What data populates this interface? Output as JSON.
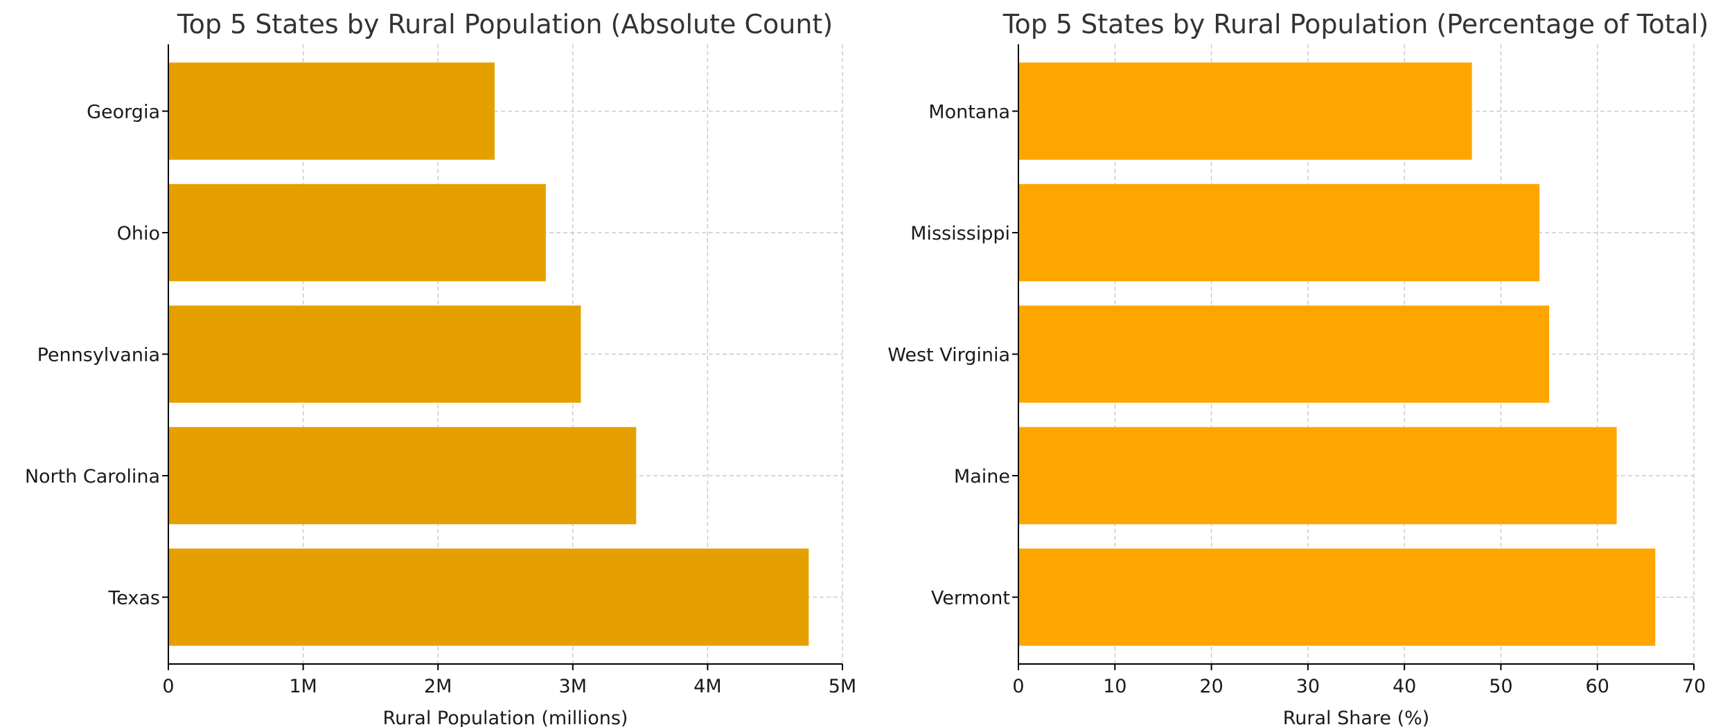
{
  "chart_data": [
    {
      "type": "bar",
      "orientation": "horizontal",
      "title": "Top 5 States by Rural Population (Absolute Count)",
      "xlabel": "Rural Population (millions)",
      "ylabel": "",
      "categories": [
        "Texas",
        "North Carolina",
        "Pennsylvania",
        "Ohio",
        "Georgia"
      ],
      "values": [
        4750000,
        3470000,
        3060000,
        2800000,
        2420000
      ],
      "xlim": [
        0,
        5000000
      ],
      "x_ticks": [
        0,
        1000000,
        2000000,
        3000000,
        4000000,
        5000000
      ],
      "x_tick_labels": [
        "0",
        "1M",
        "2M",
        "3M",
        "4M",
        "5M"
      ],
      "bar_color": "#E5A000",
      "grid": true
    },
    {
      "type": "bar",
      "orientation": "horizontal",
      "title": "Top 5 States by Rural Population (Percentage of Total)",
      "xlabel": "Rural Share (%)",
      "ylabel": "",
      "categories": [
        "Vermont",
        "Maine",
        "West Virginia",
        "Mississippi",
        "Montana"
      ],
      "values": [
        66,
        62,
        55,
        54,
        47
      ],
      "xlim": [
        0,
        70
      ],
      "x_ticks": [
        0,
        10,
        20,
        30,
        40,
        50,
        60,
        70
      ],
      "x_tick_labels": [
        "0",
        "10",
        "20",
        "30",
        "40",
        "50",
        "60",
        "70"
      ],
      "bar_color": "#FFA500",
      "grid": true
    }
  ]
}
